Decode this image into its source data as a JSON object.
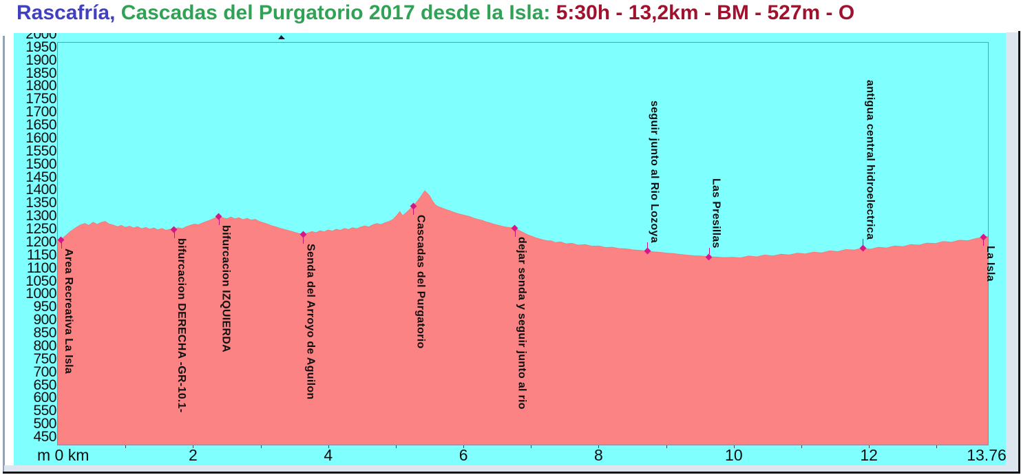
{
  "title": {
    "part1": "Rascafría,",
    "part2": " Cascadas del Purgatorio 2017 desde la Isla:",
    "part3": " 5:30h - 13,2km - BM - 527m - O",
    "colors": {
      "part1": "#4040c0",
      "part2": "#2fa255",
      "part3": "#a0112e"
    }
  },
  "colors": {
    "panel_background": "#80ffff",
    "profile_fill": "#fb8383",
    "marker": "#d61787",
    "plot_border": "#7d90a8",
    "axis_text": "#0d0d0d",
    "frame": "#dde5ef"
  },
  "chart_data": {
    "type": "area",
    "title": "Rascafría, Cascadas del Purgatorio 2017 desde la Isla: 5:30h - 13,2km - BM - 527m - O",
    "xlabel": "km",
    "ylabel": "m",
    "x_range": [
      0,
      13.76
    ],
    "x_ticks": [
      2,
      4,
      6,
      8,
      10,
      12
    ],
    "x_end_label": "13.76",
    "x_origin_label": "m 0 km",
    "y_tick_min": 450,
    "y_tick_max": 2000,
    "y_tick_step": 50,
    "y_axis_bottom_m": 421,
    "y_axis_top_m": 1968,
    "grid": false,
    "profile": [
      [
        0.0,
        1204
      ],
      [
        0.05,
        1210
      ],
      [
        0.1,
        1222
      ],
      [
        0.18,
        1240
      ],
      [
        0.26,
        1255
      ],
      [
        0.33,
        1266
      ],
      [
        0.4,
        1272
      ],
      [
        0.46,
        1265
      ],
      [
        0.52,
        1277
      ],
      [
        0.58,
        1269
      ],
      [
        0.64,
        1276
      ],
      [
        0.7,
        1280
      ],
      [
        0.76,
        1270
      ],
      [
        0.82,
        1266
      ],
      [
        0.88,
        1260
      ],
      [
        0.94,
        1265
      ],
      [
        1.0,
        1257
      ],
      [
        1.06,
        1262
      ],
      [
        1.12,
        1255
      ],
      [
        1.18,
        1260
      ],
      [
        1.24,
        1252
      ],
      [
        1.3,
        1257
      ],
      [
        1.36,
        1250
      ],
      [
        1.42,
        1255
      ],
      [
        1.48,
        1248
      ],
      [
        1.54,
        1253
      ],
      [
        1.6,
        1246
      ],
      [
        1.66,
        1250
      ],
      [
        1.72,
        1250
      ],
      [
        1.78,
        1256
      ],
      [
        1.84,
        1252
      ],
      [
        1.9,
        1260
      ],
      [
        1.96,
        1265
      ],
      [
        2.02,
        1270
      ],
      [
        2.08,
        1267
      ],
      [
        2.14,
        1274
      ],
      [
        2.2,
        1280
      ],
      [
        2.26,
        1286
      ],
      [
        2.32,
        1293
      ],
      [
        2.38,
        1300
      ],
      [
        2.44,
        1294
      ],
      [
        2.5,
        1290
      ],
      [
        2.56,
        1297
      ],
      [
        2.62,
        1290
      ],
      [
        2.68,
        1294
      ],
      [
        2.74,
        1287
      ],
      [
        2.8,
        1292
      ],
      [
        2.86,
        1285
      ],
      [
        2.92,
        1288
      ],
      [
        2.98,
        1280
      ],
      [
        3.04,
        1275
      ],
      [
        3.1,
        1270
      ],
      [
        3.16,
        1264
      ],
      [
        3.22,
        1260
      ],
      [
        3.28,
        1254
      ],
      [
        3.34,
        1250
      ],
      [
        3.4,
        1246
      ],
      [
        3.46,
        1242
      ],
      [
        3.52,
        1237
      ],
      [
        3.58,
        1233
      ],
      [
        3.63,
        1230
      ],
      [
        3.7,
        1236
      ],
      [
        3.76,
        1241
      ],
      [
        3.82,
        1237
      ],
      [
        3.88,
        1244
      ],
      [
        3.94,
        1240
      ],
      [
        4.0,
        1247
      ],
      [
        4.06,
        1243
      ],
      [
        4.12,
        1250
      ],
      [
        4.18,
        1246
      ],
      [
        4.24,
        1253
      ],
      [
        4.3,
        1249
      ],
      [
        4.36,
        1256
      ],
      [
        4.42,
        1252
      ],
      [
        4.48,
        1258
      ],
      [
        4.54,
        1263
      ],
      [
        4.6,
        1259
      ],
      [
        4.66,
        1267
      ],
      [
        4.72,
        1272
      ],
      [
        4.78,
        1268
      ],
      [
        4.84,
        1275
      ],
      [
        4.9,
        1280
      ],
      [
        4.96,
        1288
      ],
      [
        5.02,
        1305
      ],
      [
        5.06,
        1318
      ],
      [
        5.1,
        1302
      ],
      [
        5.16,
        1315
      ],
      [
        5.22,
        1330
      ],
      [
        5.26,
        1340
      ],
      [
        5.31,
        1355
      ],
      [
        5.36,
        1372
      ],
      [
        5.4,
        1388
      ],
      [
        5.43,
        1398
      ],
      [
        5.46,
        1390
      ],
      [
        5.5,
        1378
      ],
      [
        5.54,
        1360
      ],
      [
        5.58,
        1345
      ],
      [
        5.62,
        1338
      ],
      [
        5.68,
        1332
      ],
      [
        5.74,
        1326
      ],
      [
        5.8,
        1321
      ],
      [
        5.86,
        1315
      ],
      [
        5.92,
        1310
      ],
      [
        5.98,
        1306
      ],
      [
        6.04,
        1302
      ],
      [
        6.1,
        1298
      ],
      [
        6.16,
        1292
      ],
      [
        6.22,
        1288
      ],
      [
        6.28,
        1284
      ],
      [
        6.34,
        1278
      ],
      [
        6.4,
        1274
      ],
      [
        6.46,
        1269
      ],
      [
        6.52,
        1265
      ],
      [
        6.58,
        1261
      ],
      [
        6.64,
        1258
      ],
      [
        6.7,
        1256
      ],
      [
        6.76,
        1255
      ],
      [
        6.82,
        1246
      ],
      [
        6.88,
        1238
      ],
      [
        6.94,
        1230
      ],
      [
        7.0,
        1224
      ],
      [
        7.06,
        1218
      ],
      [
        7.12,
        1213
      ],
      [
        7.18,
        1209
      ],
      [
        7.24,
        1206
      ],
      [
        7.3,
        1205
      ],
      [
        7.36,
        1199
      ],
      [
        7.44,
        1201
      ],
      [
        7.52,
        1194
      ],
      [
        7.6,
        1196
      ],
      [
        7.7,
        1189
      ],
      [
        7.8,
        1191
      ],
      [
        7.9,
        1185
      ],
      [
        8.0,
        1186
      ],
      [
        8.1,
        1180
      ],
      [
        8.2,
        1181
      ],
      [
        8.3,
        1176
      ],
      [
        8.4,
        1175
      ],
      [
        8.5,
        1171
      ],
      [
        8.6,
        1169
      ],
      [
        8.72,
        1166
      ],
      [
        8.82,
        1163
      ],
      [
        8.92,
        1161
      ],
      [
        9.02,
        1158
      ],
      [
        9.12,
        1156
      ],
      [
        9.22,
        1153
      ],
      [
        9.32,
        1150
      ],
      [
        9.42,
        1148
      ],
      [
        9.52,
        1147
      ],
      [
        9.63,
        1144
      ],
      [
        9.74,
        1143
      ],
      [
        9.86,
        1141
      ],
      [
        9.98,
        1142
      ],
      [
        10.1,
        1140
      ],
      [
        10.22,
        1147
      ],
      [
        10.34,
        1144
      ],
      [
        10.46,
        1151
      ],
      [
        10.58,
        1147
      ],
      [
        10.7,
        1154
      ],
      [
        10.82,
        1151
      ],
      [
        10.94,
        1158
      ],
      [
        11.06,
        1155
      ],
      [
        11.18,
        1162
      ],
      [
        11.3,
        1159
      ],
      [
        11.42,
        1167
      ],
      [
        11.54,
        1164
      ],
      [
        11.66,
        1172
      ],
      [
        11.78,
        1170
      ],
      [
        11.91,
        1178
      ],
      [
        12.02,
        1173
      ],
      [
        12.14,
        1181
      ],
      [
        12.26,
        1178
      ],
      [
        12.38,
        1186
      ],
      [
        12.5,
        1183
      ],
      [
        12.62,
        1191
      ],
      [
        12.74,
        1189
      ],
      [
        12.86,
        1197
      ],
      [
        12.98,
        1195
      ],
      [
        13.1,
        1203
      ],
      [
        13.22,
        1200
      ],
      [
        13.34,
        1208
      ],
      [
        13.46,
        1206
      ],
      [
        13.58,
        1214
      ],
      [
        13.69,
        1220
      ],
      [
        13.76,
        1222
      ]
    ],
    "waypoints": [
      {
        "label": "Area Recreativa La Isla",
        "km": 0.05,
        "elev": 1210,
        "label_side": "below"
      },
      {
        "label": "bifurcacion DERECHA -GR-10.1-",
        "km": 1.72,
        "elev": 1250,
        "label_side": "below"
      },
      {
        "label": "bifurcacion IZQUIERDA",
        "km": 2.38,
        "elev": 1300,
        "label_side": "below"
      },
      {
        "label": "Senda del Arroyo de Aguilon",
        "km": 3.63,
        "elev": 1230,
        "label_side": "below"
      },
      {
        "label": "Cascadas del Purgatorio",
        "km": 5.26,
        "elev": 1340,
        "label_side": "below"
      },
      {
        "label": "dejar senda y seguir junto al rio",
        "km": 6.76,
        "elev": 1255,
        "label_side": "below"
      },
      {
        "label": "seguir junto al Rio Lozoya",
        "km": 8.72,
        "elev": 1166,
        "label_side": "above"
      },
      {
        "label": "Las Presillas",
        "km": 9.63,
        "elev": 1144,
        "label_side": "above"
      },
      {
        "label": "antigua central hidroelectrica",
        "km": 11.91,
        "elev": 1178,
        "label_side": "above"
      },
      {
        "label": "La Isla",
        "km": 13.69,
        "elev": 1220,
        "label_side": "below"
      }
    ]
  }
}
